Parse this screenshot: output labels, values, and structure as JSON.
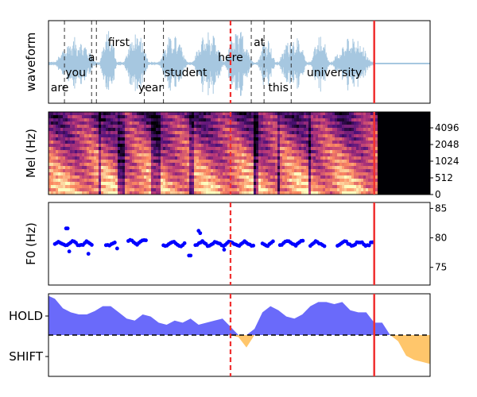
{
  "chart_data": [
    {
      "panel": "waveform",
      "type": "line",
      "ylabel": "waveform",
      "color": "#a6c7e0",
      "words": [
        {
          "text": "are",
          "t": 0.3
        },
        {
          "text": "you",
          "t": 1.3
        },
        {
          "text": "a",
          "t": 2.3
        },
        {
          "text": "first",
          "t": 4.0
        },
        {
          "text": "year",
          "t": 6.0
        },
        {
          "text": "student",
          "t": 8.2
        },
        {
          "text": "here",
          "t": 11.0
        },
        {
          "text": "at",
          "t": 12.8
        },
        {
          "text": "this",
          "t": 14.0
        },
        {
          "text": "university",
          "t": 17.5
        }
      ],
      "word_boundaries": [
        0.6,
        2.3,
        2.6,
        5.6,
        6.8,
        12.3,
        13.1,
        14.8
      ],
      "speech_end": 20.0,
      "xlim": [
        -0.4,
        23.5
      ]
    },
    {
      "panel": "mel",
      "type": "heatmap",
      "ylabel": "Mel (Hz)",
      "yticks": [
        "0",
        "512",
        "1024",
        "2048",
        "4096"
      ],
      "silence_from": 20.2
    },
    {
      "panel": "f0",
      "type": "scatter",
      "ylabel": "F0 (Hz)",
      "yticks": [
        75,
        80,
        85
      ],
      "ylim": [
        72,
        86
      ],
      "color": "#0000ff",
      "segments": [
        {
          "start": 0.0,
          "end": 2.4,
          "level": 79.0
        },
        {
          "start": 3.2,
          "end": 3.8,
          "level": 79.0
        },
        {
          "start": 4.6,
          "end": 5.8,
          "level": 79.3
        },
        {
          "start": 6.8,
          "end": 8.2,
          "level": 79.0
        },
        {
          "start": 8.8,
          "end": 12.5,
          "level": 79.0
        },
        {
          "start": 13.0,
          "end": 13.7,
          "level": 79.0
        },
        {
          "start": 14.1,
          "end": 15.6,
          "level": 79.1
        },
        {
          "start": 16.0,
          "end": 16.9,
          "level": 79.0
        },
        {
          "start": 17.7,
          "end": 19.9,
          "level": 79.0
        }
      ],
      "outliers": [
        {
          "t": 0.7,
          "v": 81.6
        },
        {
          "t": 0.8,
          "v": 81.6
        },
        {
          "t": 0.9,
          "v": 77.7
        },
        {
          "t": 2.1,
          "v": 77.3
        },
        {
          "t": 3.9,
          "v": 78.2
        },
        {
          "t": 8.4,
          "v": 77.0
        },
        {
          "t": 8.5,
          "v": 77.0
        },
        {
          "t": 9.0,
          "v": 81.2
        },
        {
          "t": 9.1,
          "v": 80.8
        },
        {
          "t": 10.6,
          "v": 78.0
        }
      ]
    },
    {
      "panel": "turn",
      "type": "area",
      "yticks": [
        "HOLD",
        "SHIFT"
      ],
      "ylim": [
        -1,
        1
      ],
      "hold_color": "#6a6afa",
      "shift_color": "#ffc66b",
      "threshold": 0,
      "x": [
        -0.4,
        0.0,
        0.5,
        1.0,
        1.5,
        2.0,
        2.5,
        3.0,
        3.5,
        4.0,
        4.5,
        5.0,
        5.5,
        6.0,
        6.5,
        7.0,
        7.5,
        8.0,
        8.5,
        9.0,
        9.5,
        10.0,
        10.5,
        11.0,
        11.5,
        12.0,
        12.5,
        13.0,
        13.5,
        14.0,
        14.5,
        15.0,
        15.5,
        16.0,
        16.5,
        17.0,
        17.5,
        18.0,
        18.5,
        19.0,
        19.5,
        20.0,
        20.5,
        21.0,
        21.5,
        22.0,
        22.5,
        23.0,
        23.5
      ],
      "values": [
        0.95,
        0.88,
        0.65,
        0.55,
        0.5,
        0.5,
        0.58,
        0.7,
        0.7,
        0.55,
        0.4,
        0.35,
        0.5,
        0.45,
        0.3,
        0.25,
        0.35,
        0.3,
        0.4,
        0.25,
        0.3,
        0.35,
        0.4,
        0.2,
        -0.05,
        -0.3,
        0.15,
        0.55,
        0.7,
        0.6,
        0.45,
        0.4,
        0.5,
        0.7,
        0.8,
        0.8,
        0.75,
        0.8,
        0.6,
        0.55,
        0.55,
        0.3,
        0.3,
        0.0,
        -0.15,
        -0.5,
        -0.6,
        -0.65,
        -0.7
      ]
    }
  ],
  "markers": {
    "dashed_red_t": 11.0,
    "solid_red_t": 20.0,
    "red": "#f03030"
  }
}
